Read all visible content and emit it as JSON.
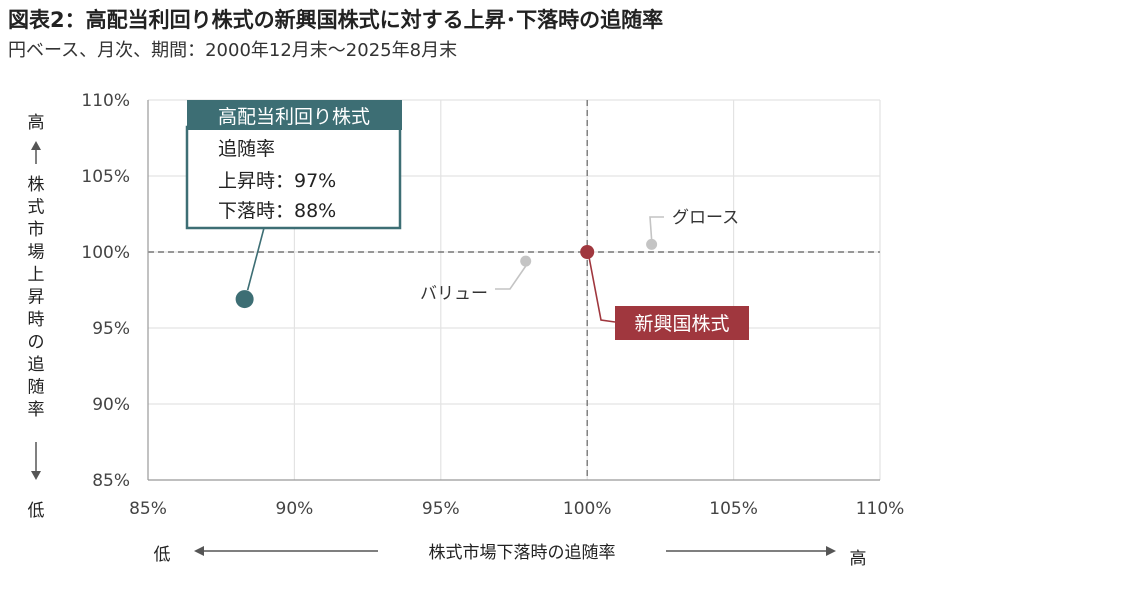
{
  "title": "図表2：高配当利回り株式の新興国株式に対する上昇･下落時の追随率",
  "subtitle": "円ベース、月次、期間：2000年12月末～2025年8月末",
  "colors": {
    "high_dividend": "#3d6e74",
    "emerging": "#a0373e",
    "style_points": "#c4c4c4",
    "grid": "#e3e3e3",
    "reference": "#777777"
  },
  "chart_data": {
    "type": "scatter",
    "xlabel": "株式市場下落時の追随率",
    "xlabel_low": "低",
    "xlabel_high": "高",
    "ylabel": "株式市場上昇時の追随率",
    "ylabel_high": "高",
    "ylabel_low": "低",
    "xlim": [
      85,
      110
    ],
    "ylim": [
      85,
      110
    ],
    "x_ticks": [
      "85%",
      "90%",
      "95%",
      "100%",
      "105%",
      "110%"
    ],
    "y_ticks": [
      "110%",
      "105%",
      "100%",
      "95%",
      "90%",
      "85%"
    ],
    "reference_lines": {
      "x": 100,
      "y": 100
    },
    "grid": true,
    "points": [
      {
        "name": "高配当利回り株式",
        "x": 88.3,
        "y": 96.9
      },
      {
        "name": "新興国株式",
        "x": 100,
        "y": 100
      },
      {
        "name": "グロース",
        "x": 102.2,
        "y": 100.5
      },
      {
        "name": "バリュー",
        "x": 97.9,
        "y": 99.4
      }
    ],
    "callout": {
      "header": "高配当利回り株式",
      "line1": "追随率",
      "line2": "上昇時：97%",
      "line3": "下落時：88%"
    }
  }
}
